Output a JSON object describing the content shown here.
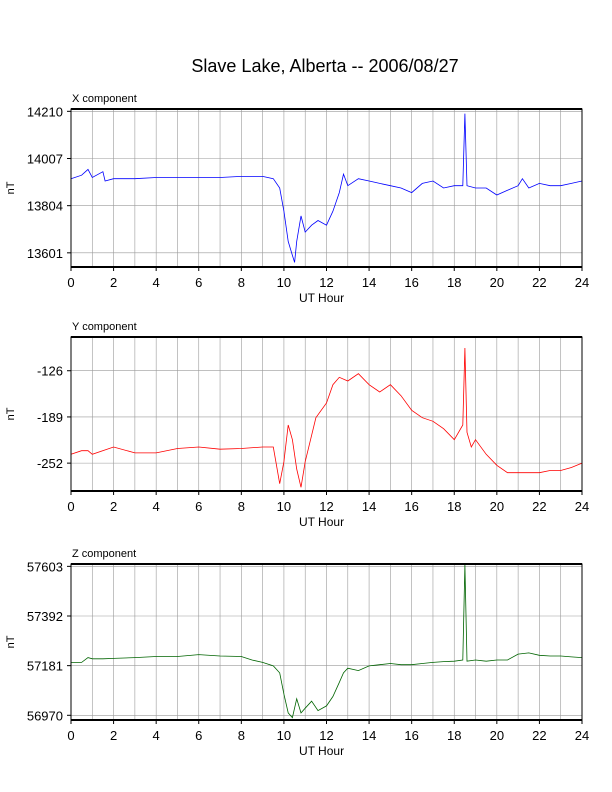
{
  "title": "Slave Lake, Alberta -- 2006/08/27",
  "chart_data": [
    {
      "type": "line",
      "title": "X component",
      "xlabel": "UT Hour",
      "ylabel": "nT",
      "color": "#0000ff",
      "xlim": [
        0,
        24
      ],
      "ylim": [
        13540,
        14220
      ],
      "xticks": [
        0,
        2,
        4,
        6,
        8,
        10,
        12,
        14,
        16,
        18,
        20,
        22,
        24
      ],
      "yticks": [
        13601,
        13804,
        14007,
        14210
      ],
      "grid": true,
      "x": [
        0,
        0.5,
        0.8,
        1.0,
        1.5,
        1.6,
        2,
        3,
        4,
        5,
        6,
        7,
        8,
        9,
        9.5,
        9.8,
        10.0,
        10.2,
        10.4,
        10.5,
        10.6,
        10.8,
        11.0,
        11.3,
        11.6,
        12.0,
        12.3,
        12.6,
        12.8,
        13.0,
        13.5,
        14.0,
        14.5,
        15.0,
        15.5,
        16.0,
        16.5,
        17.0,
        17.5,
        18.0,
        18.4,
        18.5,
        18.6,
        19.0,
        19.5,
        20.0,
        20.5,
        21.0,
        21.2,
        21.5,
        22.0,
        22.5,
        23.0,
        23.5,
        24.0
      ],
      "y": [
        13920,
        13935,
        13960,
        13925,
        13950,
        13910,
        13920,
        13920,
        13925,
        13925,
        13925,
        13925,
        13930,
        13930,
        13920,
        13880,
        13780,
        13650,
        13590,
        13560,
        13650,
        13760,
        13690,
        13720,
        13740,
        13720,
        13780,
        13860,
        13940,
        13890,
        13920,
        13910,
        13900,
        13890,
        13880,
        13860,
        13900,
        13910,
        13880,
        13890,
        13890,
        14200,
        13890,
        13880,
        13880,
        13850,
        13870,
        13890,
        13920,
        13880,
        13900,
        13890,
        13890,
        13900,
        13910
      ]
    },
    {
      "type": "line",
      "title": "Y component",
      "xlabel": "UT Hour",
      "ylabel": "nT",
      "color": "#ff0000",
      "xlim": [
        0,
        24
      ],
      "ylim": [
        -290,
        -80
      ],
      "xticks": [
        0,
        2,
        4,
        6,
        8,
        10,
        12,
        14,
        16,
        18,
        20,
        22,
        24
      ],
      "yticks": [
        -126,
        -189,
        -252
      ],
      "grid": true,
      "x": [
        0,
        0.5,
        0.8,
        1.0,
        2,
        3,
        4,
        5,
        6,
        7,
        8,
        9,
        9.5,
        9.8,
        10.0,
        10.2,
        10.4,
        10.6,
        10.8,
        11.0,
        11.5,
        12.0,
        12.3,
        12.6,
        13.0,
        13.5,
        14.0,
        14.5,
        15.0,
        15.5,
        16.0,
        16.5,
        17.0,
        17.5,
        18.0,
        18.4,
        18.5,
        18.6,
        18.8,
        19.0,
        19.5,
        20.0,
        20.5,
        21.0,
        21.5,
        22.0,
        22.5,
        23.0,
        23.5,
        24.0
      ],
      "y": [
        -240,
        -235,
        -235,
        -240,
        -230,
        -238,
        -238,
        -232,
        -230,
        -233,
        -232,
        -230,
        -230,
        -280,
        -250,
        -200,
        -220,
        -260,
        -285,
        -250,
        -190,
        -170,
        -145,
        -135,
        -140,
        -130,
        -145,
        -155,
        -145,
        -160,
        -180,
        -190,
        -195,
        -205,
        -220,
        -200,
        -95,
        -210,
        -230,
        -220,
        -240,
        -255,
        -265,
        -265,
        -265,
        -265,
        -262,
        -262,
        -258,
        -252
      ]
    },
    {
      "type": "line",
      "title": "Z component",
      "xlabel": "UT Hour",
      "ylabel": "nT",
      "color": "#006400",
      "xlim": [
        0,
        24
      ],
      "ylim": [
        56950,
        57613
      ],
      "xticks": [
        0,
        2,
        4,
        6,
        8,
        10,
        12,
        14,
        16,
        18,
        20,
        22,
        24
      ],
      "yticks": [
        56970,
        57181,
        57392,
        57603
      ],
      "grid": true,
      "x": [
        0,
        0.5,
        0.8,
        1.0,
        1.5,
        2,
        3,
        4,
        5,
        6,
        7,
        8,
        8.5,
        9,
        9.5,
        9.8,
        10.0,
        10.2,
        10.4,
        10.6,
        10.8,
        11.0,
        11.3,
        11.6,
        12.0,
        12.3,
        12.6,
        12.8,
        13.0,
        13.5,
        14.0,
        14.5,
        15.0,
        15.5,
        16.0,
        16.5,
        17.0,
        17.5,
        18.0,
        18.4,
        18.5,
        18.6,
        19.0,
        19.5,
        20.0,
        20.5,
        21.0,
        21.5,
        22.0,
        22.5,
        23.0,
        23.5,
        24.0
      ],
      "y": [
        57195,
        57195,
        57215,
        57210,
        57210,
        57212,
        57215,
        57220,
        57220,
        57228,
        57222,
        57220,
        57205,
        57195,
        57180,
        57150,
        57060,
        56980,
        56960,
        57040,
        56980,
        57000,
        57030,
        56990,
        57010,
        57050,
        57110,
        57150,
        57170,
        57160,
        57180,
        57185,
        57190,
        57185,
        57185,
        57190,
        57195,
        57198,
        57200,
        57205,
        57610,
        57200,
        57205,
        57200,
        57205,
        57205,
        57230,
        57235,
        57225,
        57222,
        57222,
        57218,
        57215
      ]
    }
  ]
}
